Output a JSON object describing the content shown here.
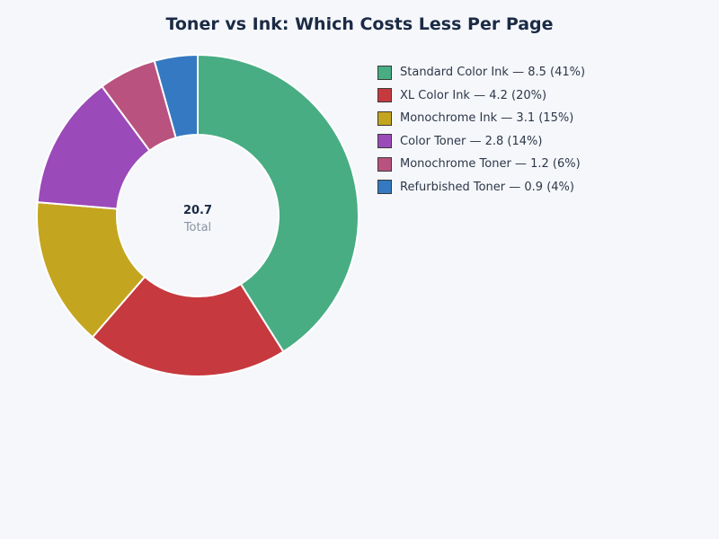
{
  "chart_data": {
    "type": "pie",
    "subtype": "donut",
    "title": "Toner vs Ink: Which Costs Less Per Page",
    "center": {
      "value": "20.7",
      "label": "Total"
    },
    "legend_position": "right",
    "categories": [
      "Standard Color Ink",
      "XL Color Ink",
      "Monochrome Ink",
      "Color Toner",
      "Monochrome Toner",
      "Refurbished Toner"
    ],
    "values": [
      8.5,
      4.2,
      3.1,
      2.8,
      1.2,
      0.9
    ],
    "percentages": [
      41,
      20,
      15,
      14,
      6,
      4
    ],
    "colors": [
      "#48ad83",
      "#c6393e",
      "#c4a51f",
      "#9b4ab9",
      "#b9527f",
      "#3479c1"
    ],
    "legend": [
      "Standard Color Ink — 8.5 (41%)",
      "XL Color Ink — 4.2 (20%)",
      "Monochrome Ink — 3.1 (15%)",
      "Color Toner — 2.8 (14%)",
      "Monochrome Toner — 1.2 (6%)",
      "Refurbished Toner — 0.9 (4%)"
    ]
  }
}
